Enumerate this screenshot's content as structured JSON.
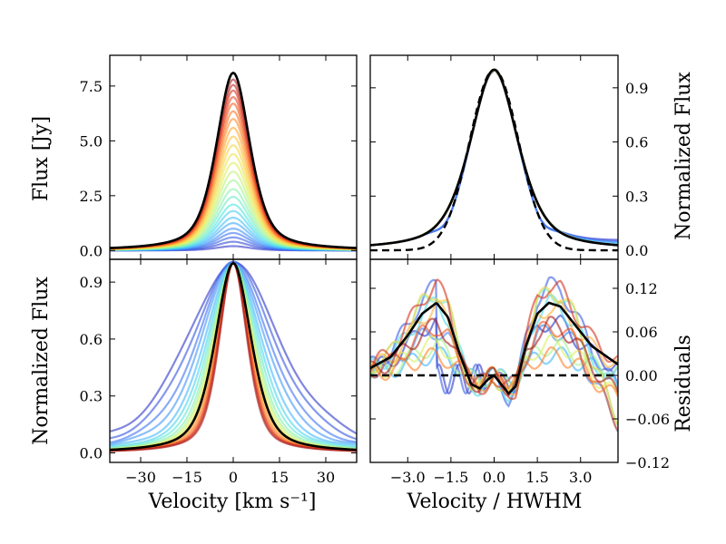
{
  "chart_data": [
    {
      "id": "tl",
      "type": "line",
      "ylabel": "Flux [Jy]",
      "xlim": [
        -40,
        40
      ],
      "ylim": [
        -0.4,
        8.9
      ],
      "yticks": [
        0.0,
        2.5,
        5.0,
        7.5
      ],
      "ytick_labels": [
        "0.0",
        "2.5",
        "5.0",
        "7.5"
      ],
      "profile": "gauss_lorentz_mix",
      "peaks": [
        0.2,
        0.4,
        0.6,
        0.8,
        1.0,
        1.25,
        1.5,
        1.8,
        2.1,
        2.45,
        2.8,
        3.2,
        3.6,
        4.0,
        4.4,
        4.8,
        5.2,
        5.6,
        6.0,
        6.35,
        6.7,
        7.0,
        7.3,
        7.55,
        7.8
      ],
      "hwhm_km_s": 6.5,
      "reference": {
        "peak": 8.1,
        "hwhm_km_s": 6.5,
        "color": "#000000"
      }
    },
    {
      "id": "tr",
      "type": "line",
      "ylabel": "Normalized Flux",
      "xlim": [
        -4.3,
        4.3
      ],
      "ylim": [
        -0.05,
        1.08
      ],
      "yticks": [
        0.0,
        0.3,
        0.6,
        0.9
      ],
      "ytick_labels": [
        "0.0",
        "0.3",
        "0.6",
        "0.9"
      ],
      "reference_label": "",
      "gaussian_dashed": {
        "hwhm": 1.0,
        "color": "#000000"
      }
    },
    {
      "id": "bl",
      "type": "line",
      "xlabel": "Velocity [km s⁻¹]",
      "ylabel": "Normalized Flux",
      "xlim": [
        -40,
        40
      ],
      "ylim": [
        -0.05,
        1.02
      ],
      "xticks": [
        -30,
        -15,
        0,
        15,
        30
      ],
      "xtick_labels": [
        "−30",
        "−15",
        "0",
        "15",
        "30"
      ],
      "yticks": [
        0.0,
        0.3,
        0.6,
        0.9
      ],
      "ytick_labels": [
        "0.0",
        "0.3",
        "0.6",
        "0.9"
      ],
      "widths_km_s": [
        18,
        16,
        14,
        12.5,
        11,
        10,
        9.2,
        8.5,
        8.0,
        7.6,
        7.2,
        6.9,
        6.6,
        6.3,
        6.0,
        5.8,
        5.6,
        5.4
      ],
      "reference_hwhm_km_s": 7.0
    },
    {
      "id": "br",
      "type": "line",
      "xlabel": "Velocity / HWHM",
      "ylabel": "Residuals",
      "xlim": [
        -4.3,
        4.3
      ],
      "ylim": [
        -0.12,
        0.16
      ],
      "xticks": [
        -3.0,
        -1.5,
        0.0,
        1.5,
        3.0
      ],
      "xtick_labels": [
        "−3.0",
        "−1.5",
        "0.0",
        "1.5",
        "3.0"
      ],
      "yticks": [
        -0.12,
        -0.06,
        0.0,
        0.06,
        0.12
      ],
      "ytick_labels": [
        "−0.12",
        "−0.06",
        "0.00",
        "0.06",
        "0.12"
      ],
      "reference_residual": [
        [
          -4.3,
          0.01
        ],
        [
          -3.6,
          0.025
        ],
        [
          -3.0,
          0.055
        ],
        [
          -2.5,
          0.085
        ],
        [
          -2.0,
          0.1
        ],
        [
          -1.6,
          0.08
        ],
        [
          -1.2,
          0.03
        ],
        [
          -0.8,
          -0.012
        ],
        [
          -0.5,
          -0.018
        ],
        [
          -0.2,
          -0.005
        ],
        [
          0.0,
          0.0
        ],
        [
          0.2,
          -0.01
        ],
        [
          0.5,
          -0.025
        ],
        [
          0.75,
          -0.015
        ],
        [
          1.1,
          0.04
        ],
        [
          1.5,
          0.085
        ],
        [
          1.9,
          0.1
        ],
        [
          2.3,
          0.095
        ],
        [
          2.8,
          0.07
        ],
        [
          3.4,
          0.04
        ],
        [
          4.3,
          0.015
        ]
      ],
      "zero_line": {
        "y": 0.0,
        "color": "#000000"
      }
    }
  ],
  "colors": {
    "colormap": [
      "#2c35c8",
      "#3c6ef0",
      "#3fb0ff",
      "#4fe6e0",
      "#9cf39a",
      "#e6f050",
      "#ffc23a",
      "#ff7a22",
      "#e83c1c",
      "#a51c1c"
    ],
    "axis": "#000000",
    "reference": "#000000"
  }
}
